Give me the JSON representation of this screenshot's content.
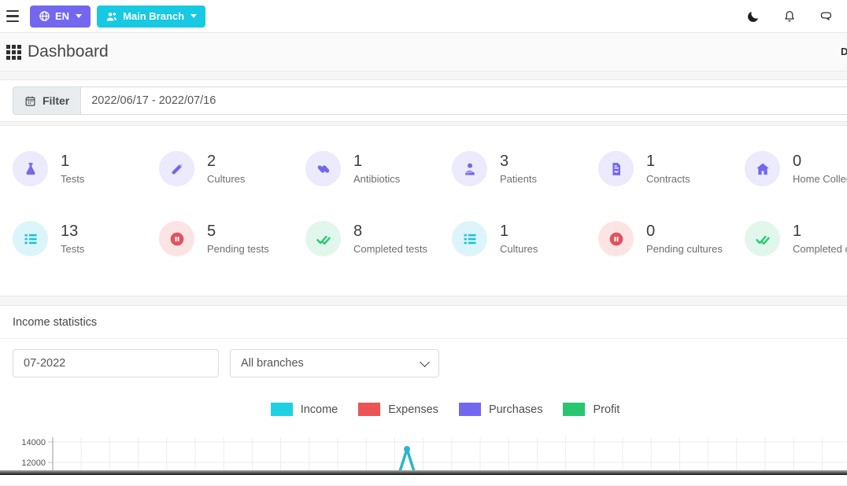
{
  "colors": {
    "primary": "#7367f0",
    "info": "#00cfe8",
    "danger": "#ea5455",
    "success": "#28c76f",
    "chart_line": "#2ab5c8"
  },
  "topbar": {
    "menu_icon": "hamburger-icon",
    "language_button": {
      "label": "EN",
      "icon": "globe-icon"
    },
    "branch_button": {
      "label": "Main Branch",
      "icon": "users-icon"
    },
    "right_icons": [
      "moon-icon",
      "bell-icon",
      "chat-icon"
    ]
  },
  "header": {
    "title": "Dashboard",
    "icon": "grid-icon",
    "right_truncated_text": "Dashboard"
  },
  "filter": {
    "label": "Filter",
    "icon": "calendar-icon",
    "date_range_value": "2022/06/17 - 2022/07/16"
  },
  "stats": {
    "items": [
      {
        "value": "1",
        "label": "Tests",
        "icon": "flask-icon",
        "color": "purple"
      },
      {
        "value": "2",
        "label": "Cultures",
        "icon": "vial-icon",
        "color": "purple"
      },
      {
        "value": "1",
        "label": "Antibiotics",
        "icon": "capsules-icon",
        "color": "purple"
      },
      {
        "value": "3",
        "label": "Patients",
        "icon": "patient-icon",
        "color": "purple"
      },
      {
        "value": "1",
        "label": "Contracts",
        "icon": "file-contract-icon",
        "color": "purple"
      },
      {
        "value": "0",
        "label": "Home Collection",
        "icon": "home-icon",
        "color": "purple"
      },
      {
        "value": "13",
        "label": "Tests",
        "icon": "list-icon",
        "color": "cyan"
      },
      {
        "value": "5",
        "label": "Pending tests",
        "icon": "pause-circle-icon",
        "color": "red"
      },
      {
        "value": "8",
        "label": "Completed tests",
        "icon": "check-double-icon",
        "color": "green"
      },
      {
        "value": "1",
        "label": "Cultures",
        "icon": "list-icon",
        "color": "cyan"
      },
      {
        "value": "0",
        "label": "Pending cultures",
        "icon": "pause-circle-icon",
        "color": "red"
      },
      {
        "value": "1",
        "label": "Completed cultures",
        "icon": "check-double-icon",
        "color": "green"
      }
    ]
  },
  "income": {
    "title": "Income statistics",
    "month_value": "07-2022",
    "branches_value": "All branches",
    "legend": [
      {
        "label": "Income",
        "color": "#1fd0e4"
      },
      {
        "label": "Expenses",
        "color": "#ea5455"
      },
      {
        "label": "Purchases",
        "color": "#7367f0"
      },
      {
        "label": "Profit",
        "color": "#28c76f"
      }
    ]
  },
  "chart_data": {
    "type": "line",
    "title": "Income statistics",
    "legend": [
      "Income",
      "Expenses",
      "Purchases",
      "Profit"
    ],
    "legend_position": "top-center",
    "grid": true,
    "y_ticks_visible": [
      14000,
      12000
    ],
    "y_tick_step": 2000,
    "visible_area_note": "chart cropped at bottom edge of screenshot; x-axis day labels not visible",
    "series": [
      {
        "name": "Income",
        "color": "#2ab5c8",
        "visible_points": [
          {
            "x_frac": 0.446,
            "y": 13300
          }
        ]
      },
      {
        "name": "Expenses",
        "color": "#ea5455",
        "visible_points": []
      },
      {
        "name": "Purchases",
        "color": "#7367f0",
        "visible_points": []
      },
      {
        "name": "Profit",
        "color": "#28c76f",
        "visible_points": []
      }
    ]
  }
}
